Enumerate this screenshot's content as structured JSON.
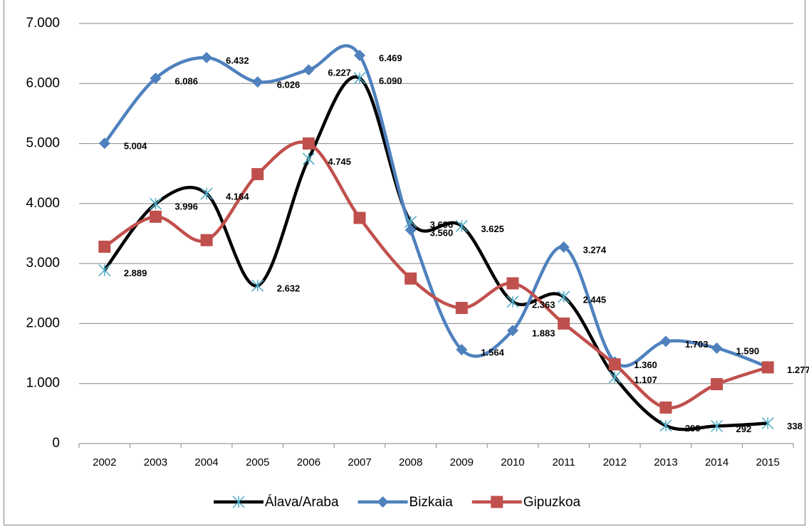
{
  "chart_data": {
    "type": "line",
    "categories": [
      "2002",
      "2003",
      "2004",
      "2005",
      "2006",
      "2007",
      "2008",
      "2009",
      "2010",
      "2011",
      "2012",
      "2013",
      "2014",
      "2015"
    ],
    "series": [
      {
        "name": "Álava/Araba",
        "color": "#000000",
        "marker": "asterisk",
        "marker_color": "#4bacc6",
        "values": [
          2889,
          3996,
          4164,
          2632,
          4745,
          6090,
          3696,
          3625,
          2363,
          2445,
          1107,
          299,
          292,
          338
        ],
        "value_labels": [
          "2.889",
          "3.996",
          "4.164",
          "2.632",
          "4.745",
          "6.090",
          "3.696",
          "3.625",
          "2.363",
          "2.445",
          "1.107",
          "299",
          "292",
          "338"
        ]
      },
      {
        "name": "Bizkaia",
        "color": "#4f81bd",
        "marker": "diamond",
        "marker_color": "#4f81bd",
        "values": [
          5004,
          6086,
          6432,
          6026,
          6227,
          6469,
          3560,
          1564,
          1883,
          3274,
          1360,
          1703,
          1590,
          1277
        ],
        "value_labels": [
          "5.004",
          "6.086",
          "6.432",
          "6.026",
          "6.227",
          "6.469",
          "3.560",
          "1.564",
          "1.883",
          "3.274",
          "1.360",
          "1.703",
          "1.590",
          "1.277"
        ]
      },
      {
        "name": "Gipuzkoa",
        "color": "#c0504d",
        "marker": "square",
        "marker_color": "#c0504d",
        "values": [
          3280,
          3780,
          3390,
          4490,
          5000,
          3760,
          2750,
          2260,
          2670,
          2000,
          1320,
          600,
          990,
          1270
        ]
      }
    ],
    "ylim": [
      0,
      7000
    ],
    "yticks": [
      0,
      {
        "value": 1000,
        "label": "1.000"
      },
      {
        "value": 2000,
        "label": "2.000"
      },
      {
        "value": 3000,
        "label": "3.000"
      },
      {
        "value": 4000,
        "label": "4.000"
      },
      {
        "value": 5000,
        "label": "5.000"
      },
      {
        "value": 6000,
        "label": "6.000"
      },
      {
        "value": 7000,
        "label": "7.000"
      }
    ],
    "grid": true,
    "smooth": true,
    "legend": "bottom"
  }
}
